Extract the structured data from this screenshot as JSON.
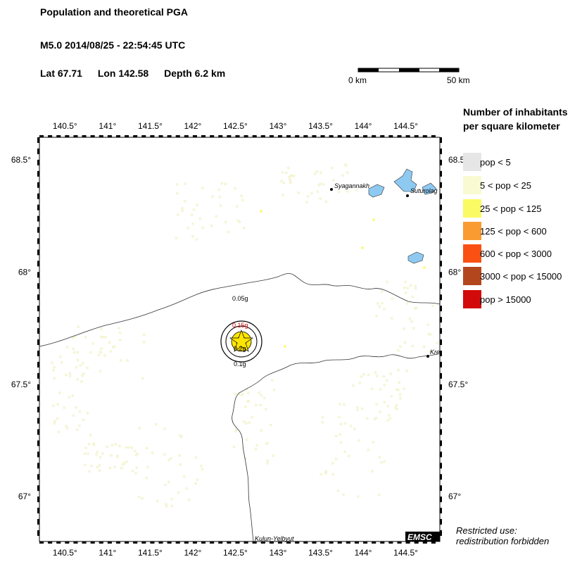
{
  "header": {
    "title": "Population and theoretical PGA",
    "event_line": "M5.0  2014/08/25 - 22:54:45 UTC",
    "lat": "Lat 67.71",
    "lon": "Lon 142.58",
    "depth": "Depth  6.2 km"
  },
  "scale_bar": {
    "start_label": "0 km",
    "end_label": "50 km"
  },
  "map": {
    "lon_range": [
      140.2,
      144.9
    ],
    "lat_range": [
      66.8,
      68.6
    ],
    "lon_ticks": [
      "140.5°",
      "141°",
      "141.5°",
      "142°",
      "142.5°",
      "143°",
      "143.5°",
      "144°",
      "144.5°"
    ],
    "lat_ticks": [
      "68.5°",
      "68°",
      "67.5°",
      "67°"
    ],
    "places": [
      "Syagannakh",
      "Suturolag",
      "Kre",
      "Kulun-Yelbyut"
    ],
    "pga_contours": [
      "0.15g",
      "0.05g",
      "0.1g",
      "0.2g"
    ],
    "epicenter": {
      "lat": 67.71,
      "lon": 142.58,
      "symbol": "star-icon"
    },
    "badge": "EMSC",
    "water_color": "#8ec9f2",
    "background_color": "#ffffff"
  },
  "legend": {
    "title_line1": "Number of inhabitants",
    "title_line2": "per square kilometer",
    "items": [
      {
        "label": "pop < 5",
        "color": "#e6e6e6"
      },
      {
        "label": "5 < pop < 25",
        "color": "#fafad2"
      },
      {
        "label": "25 < pop < 125",
        "color": "#fafa64"
      },
      {
        "label": "125 < pop < 600",
        "color": "#fa9b32"
      },
      {
        "label": "600 < pop < 3000",
        "color": "#fa5014"
      },
      {
        "label": "3000 < pop < 15000",
        "color": "#b4461e"
      },
      {
        "label": "pop > 15000",
        "color": "#d20a0a"
      }
    ]
  },
  "footer": {
    "line1": "Restricted use:",
    "line2": "redistribution forbidden"
  }
}
